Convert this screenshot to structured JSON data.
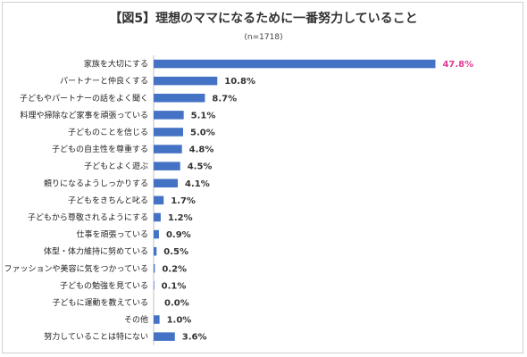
{
  "chart_data": {
    "type": "bar",
    "orientation": "horizontal",
    "title": "【図5】理想のママになるために一番努力していること",
    "subtitle": "(n=1718)",
    "categories": [
      "家族を大切にする",
      "パートナーと仲良くする",
      "子どもやパートナーの話をよく聞く",
      "料理や掃除など家事を頑張っている",
      "子どものことを信じる",
      "子どもの自主性を尊重する",
      "子どもとよく遊ぶ",
      "頼りになるようしっかりする",
      "子どもをきちんと叱る",
      "子どもから尊敬されるようにする",
      "仕事を頑張っている",
      "体型・体力維持に努めている",
      "ファッションや美容に気をつかっている",
      "子どもの勉強を見ている",
      "子どもに運動を教えている",
      "その他",
      "努力していることは特にない"
    ],
    "values": [
      47.8,
      10.8,
      8.7,
      5.1,
      5.0,
      4.8,
      4.5,
      4.1,
      1.7,
      1.2,
      0.9,
      0.5,
      0.2,
      0.1,
      0.0,
      1.0,
      3.6
    ],
    "value_labels": [
      "47.8%",
      "10.8%",
      "8.7%",
      "5.1%",
      "5.0%",
      "4.8%",
      "4.5%",
      "4.1%",
      "1.7%",
      "1.2%",
      "0.9%",
      "0.5%",
      "0.2%",
      "0.1%",
      "0.0%",
      "1.0%",
      "3.6%"
    ],
    "xlim": [
      0,
      50
    ],
    "bar_color": "#4472c4",
    "highlight_color": "#e23c95",
    "highlight_index": 0,
    "grid": false,
    "legend": "none"
  }
}
